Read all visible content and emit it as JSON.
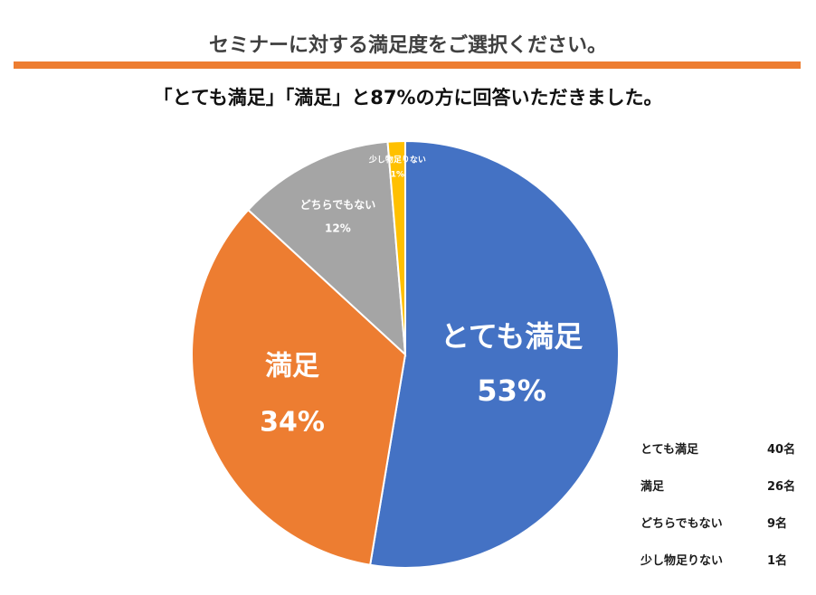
{
  "header": {
    "title": "セミナーに対する満足度をご選択ください。",
    "subtitle": "「とても満足」「満足」と87%の方に回答いただきました。"
  },
  "chart_data": {
    "type": "pie",
    "slices": [
      {
        "name": "とても満足",
        "percent": 53,
        "percent_label": "53%",
        "count": 40,
        "count_label": "40名",
        "color": "#4472C4"
      },
      {
        "name": "満足",
        "percent": 34,
        "percent_label": "34%",
        "count": 26,
        "count_label": "26名",
        "color": "#ED7D31"
      },
      {
        "name": "どちらでもない",
        "percent": 12,
        "percent_label": "12%",
        "count": 9,
        "count_label": "9名",
        "color": "#A5A5A5"
      },
      {
        "name": "少し物足りない",
        "percent": 1,
        "percent_label": "1%",
        "count": 1,
        "count_label": "1名",
        "color": "#FFC000"
      }
    ],
    "legend_placement": "bottom-right"
  },
  "colors": {
    "accent_bar": "#ED7D31"
  }
}
